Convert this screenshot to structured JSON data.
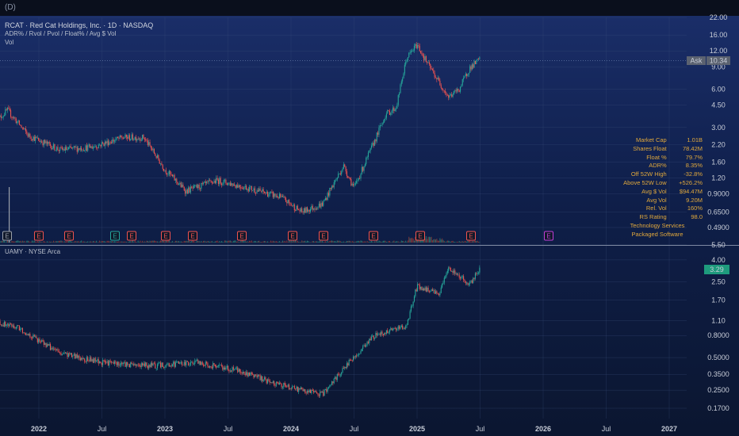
{
  "header": {
    "top_icon": "(D)",
    "pane1_title": "RCAT · Red Cat Holdings, Inc. · 1D · NASDAQ",
    "pane1_sub": "ADR% / Rvol / Pvol / Float% / Avg $ Vol",
    "pane1_vol": "Vol",
    "pane2_title": "UAMY · NYSE Arca"
  },
  "price_labels": {
    "ask_label": "Ask",
    "ask_value": "10.34",
    "uamy_value": "3.29"
  },
  "colors": {
    "up": "#26a69a",
    "down": "#ef5350",
    "accent_green": "#1e9b7d",
    "fund_text": "#e0a83c",
    "ask_bg": "#5b6270"
  },
  "earnings_markers": [
    "E",
    "E",
    "E",
    "E",
    "E",
    "E",
    "E",
    "E",
    "E",
    "E",
    "E",
    "E",
    "E",
    "E"
  ],
  "fundamentals": [
    {
      "k": "Market Cap",
      "v": "1.01B"
    },
    {
      "k": "Shares Float",
      "v": "78.42M"
    },
    {
      "k": "Float %",
      "v": "79.7%"
    },
    {
      "k": "ADR%",
      "v": "8.35%"
    },
    {
      "k": "Off 52W High",
      "v": "-32.8%"
    },
    {
      "k": "Above 52W Low",
      "v": "+526.2%"
    },
    {
      "k": "Avg $ Vol",
      "v": "$94.47M"
    },
    {
      "k": "Avg Vol",
      "v": "9.20M"
    },
    {
      "k": "Rel. Vol",
      "v": "160%"
    },
    {
      "k": "RS Rating",
      "v": "98.0"
    }
  ],
  "sector": "Technology Services",
  "industry": "Packaged Software",
  "chart_data": [
    {
      "type": "candlestick",
      "title": "RCAT · Red Cat Holdings, Inc. · 1D · NASDAQ",
      "yscale": "log",
      "y_ticks": [
        "22.00",
        "16.00",
        "12.00",
        "9.00",
        "6.00",
        "4.50",
        "3.00",
        "2.20",
        "1.60",
        "1.20",
        "0.9000",
        "0.6500",
        "0.4900"
      ],
      "x_ticks": [
        "2022",
        "Jul",
        "2023",
        "Jul",
        "2024",
        "Jul",
        "2025",
        "Jul",
        "2026",
        "Jul",
        "2027"
      ],
      "approx_close_path": [
        {
          "t": "2021-09",
          "v": 3.4
        },
        {
          "t": "2021-10",
          "v": 4.1
        },
        {
          "t": "2021-12",
          "v": 2.6
        },
        {
          "t": "2022-03",
          "v": 2.0
        },
        {
          "t": "2022-06",
          "v": 2.1
        },
        {
          "t": "2022-09",
          "v": 2.5
        },
        {
          "t": "2022-11",
          "v": 2.5
        },
        {
          "t": "2023-01",
          "v": 1.4
        },
        {
          "t": "2023-03",
          "v": 0.95
        },
        {
          "t": "2023-06",
          "v": 1.15
        },
        {
          "t": "2023-09",
          "v": 1.0
        },
        {
          "t": "2023-12",
          "v": 0.85
        },
        {
          "t": "2024-02",
          "v": 0.65
        },
        {
          "t": "2024-04",
          "v": 0.75
        },
        {
          "t": "2024-06",
          "v": 1.5
        },
        {
          "t": "2024-07",
          "v": 1.0
        },
        {
          "t": "2024-09",
          "v": 2.4
        },
        {
          "t": "2024-10",
          "v": 3.8
        },
        {
          "t": "2024-11",
          "v": 4.3
        },
        {
          "t": "2024-12",
          "v": 10.5
        },
        {
          "t": "2025-01",
          "v": 13.5
        },
        {
          "t": "2025-02",
          "v": 9.5
        },
        {
          "t": "2025-04",
          "v": 5.2
        },
        {
          "t": "2025-05",
          "v": 6.0
        },
        {
          "t": "2025-06",
          "v": 8.8
        },
        {
          "t": "2025-07",
          "v": 10.34
        }
      ]
    },
    {
      "type": "candlestick",
      "title": "UAMY · NYSE Arca",
      "yscale": "log",
      "y_ticks": [
        "5.50",
        "4.00",
        "2.50",
        "1.70",
        "1.10",
        "0.8000",
        "0.5000",
        "0.3500",
        "0.2500",
        "0.1700"
      ],
      "x_ticks": [
        "2022",
        "Jul",
        "2023",
        "Jul",
        "2024",
        "Jul",
        "2025",
        "Jul",
        "2026",
        "Jul",
        "2027"
      ],
      "approx_close_path": [
        {
          "t": "2021-09",
          "v": 1.05
        },
        {
          "t": "2021-11",
          "v": 0.95
        },
        {
          "t": "2022-03",
          "v": 0.55
        },
        {
          "t": "2022-07",
          "v": 0.45
        },
        {
          "t": "2022-12",
          "v": 0.42
        },
        {
          "t": "2023-04",
          "v": 0.45
        },
        {
          "t": "2023-08",
          "v": 0.38
        },
        {
          "t": "2023-11",
          "v": 0.3
        },
        {
          "t": "2024-02",
          "v": 0.25
        },
        {
          "t": "2024-04",
          "v": 0.23
        },
        {
          "t": "2024-06",
          "v": 0.4
        },
        {
          "t": "2024-09",
          "v": 0.8
        },
        {
          "t": "2024-12",
          "v": 1.0
        },
        {
          "t": "2025-01",
          "v": 2.3
        },
        {
          "t": "2025-03",
          "v": 1.9
        },
        {
          "t": "2025-04",
          "v": 3.3
        },
        {
          "t": "2025-06",
          "v": 2.4
        },
        {
          "t": "2025-07",
          "v": 3.29
        }
      ]
    }
  ]
}
